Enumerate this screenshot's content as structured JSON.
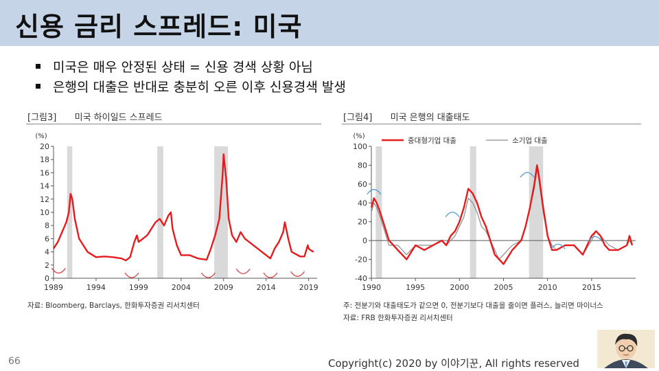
{
  "title": "신용 금리 스프레드: 미국",
  "bullets": [
    "미국은 매우 안정된 상태 = 신용 경색 상황 아님",
    "은행의 대출은 반대로 충분히 오른 이후 신용경색 발생"
  ],
  "figure_left": {
    "label": "[그림3]",
    "title": "미국 하이일드 스프레드",
    "source": "자료: Bloomberg, Barclays, 한화투자증권 리서치센터"
  },
  "figure_right": {
    "label": "[그림4]",
    "title": "미국 은행의 대출태도",
    "note": "주: 전분기와 대출태도가 같으면 0, 전분기보다 대출을 줄이면 플러스, 늘리면 마이너스",
    "source": "자료: FRB 한화투자증권 리서치센터"
  },
  "page_number": "66",
  "copyright": "Copyright(c) 2020 by 이야기꾼, All rights reserved",
  "colors": {
    "title_bar": "#c5d4e6",
    "series_red": "#e8191b",
    "series_gray": "#8c8c8c",
    "recession": "#d9d9d9",
    "annotation_blue": "#4a9ad6",
    "annotation_red": "#d64545"
  },
  "chart_data": [
    {
      "type": "line",
      "unit_label": "(%)",
      "ylim": [
        0,
        20
      ],
      "yticks": [
        "0",
        "2",
        "4",
        "6",
        "8",
        "10",
        "12",
        "14",
        "16",
        "18",
        "20"
      ],
      "xlim": [
        1989,
        2020
      ],
      "xticks": [
        "1989",
        "1994",
        "1999",
        "2004",
        "2009",
        "2014",
        "2019"
      ],
      "grid": false,
      "recessions": [
        [
          1990.6,
          1991.2
        ],
        [
          2001.2,
          2001.9
        ],
        [
          2007.9,
          2009.5
        ]
      ],
      "series": [
        {
          "color": "#e8191b",
          "x": [
            1989,
            1989.5,
            1990,
            1990.5,
            1990.8,
            1991,
            1991.2,
            1991.5,
            1992,
            1993,
            1994,
            1995,
            1996,
            1997,
            1997.5,
            1998,
            1998.5,
            1998.8,
            1999,
            1999.5,
            2000,
            2000.5,
            2001,
            2001.5,
            2002,
            2002.5,
            2002.8,
            2003,
            2003.5,
            2004,
            2005,
            2006,
            2007,
            2007.5,
            2008,
            2008.5,
            2008.9,
            2009,
            2009.3,
            2009.6,
            2010,
            2010.5,
            2011,
            2011.5,
            2012,
            2013,
            2014,
            2014.5,
            2015,
            2015.5,
            2016,
            2016.2,
            2016.6,
            2017,
            2018,
            2018.5,
            2018.9,
            2019,
            2019.3,
            2019.6
          ],
          "y": [
            4.5,
            5.5,
            7,
            8.5,
            10,
            12.8,
            12,
            9,
            6,
            4,
            3.2,
            3.3,
            3.2,
            3,
            2.7,
            3.2,
            5.5,
            6.5,
            5.5,
            6,
            6.5,
            7.5,
            8.5,
            9,
            8,
            9.5,
            10,
            7.5,
            5,
            3.5,
            3.5,
            3,
            2.8,
            4.5,
            6.5,
            9,
            16,
            18.8,
            15,
            9,
            6.5,
            5.5,
            7,
            6,
            5.5,
            4.5,
            3.5,
            3,
            4.5,
            5.5,
            7,
            8.5,
            6,
            4,
            3.3,
            3.3,
            5,
            4.5,
            4.2,
            4
          ]
        }
      ],
      "annotations": [
        "arc-1989",
        "arc-1997",
        "arc-2007",
        "arc-2011",
        "arc-2014",
        "arc-2018"
      ]
    },
    {
      "type": "line",
      "unit_label": "(%)",
      "ylim": [
        -40,
        100
      ],
      "yticks": [
        "-40",
        "-20",
        "0",
        "20",
        "40",
        "60",
        "80",
        "100"
      ],
      "xlim": [
        1990,
        2020
      ],
      "xticks": [
        "1990",
        "1995",
        "2000",
        "2005",
        "2010",
        "2015"
      ],
      "grid": false,
      "recessions": [
        [
          1990.5,
          1991.2
        ],
        [
          2001.2,
          2001.9
        ],
        [
          2007.9,
          2009.5
        ]
      ],
      "legend_position": "top",
      "series": [
        {
          "name": "중대형기업 대출",
          "color": "#e8191b",
          "x": [
            1990,
            1990.3,
            1990.6,
            1991,
            1991.5,
            1992,
            1993,
            1994,
            1995,
            1996,
            1997,
            1998,
            1998.5,
            1999,
            1999.5,
            2000,
            2000.5,
            2001,
            2001.5,
            2002,
            2002.5,
            2003,
            2003.5,
            2004,
            2004.5,
            2005,
            2006,
            2007,
            2007.5,
            2008,
            2008.5,
            2008.8,
            2009,
            2009.5,
            2010,
            2010.5,
            2011,
            2012,
            2013,
            2014,
            2015,
            2015.5,
            2016,
            2016.5,
            2017,
            2018,
            2019,
            2019.3,
            2019.6
          ],
          "y": [
            35,
            45,
            40,
            30,
            15,
            0,
            -10,
            -20,
            -5,
            -10,
            -5,
            0,
            -5,
            5,
            10,
            20,
            35,
            55,
            50,
            40,
            25,
            15,
            0,
            -15,
            -20,
            -25,
            -10,
            0,
            15,
            35,
            60,
            80,
            70,
            35,
            5,
            -10,
            -10,
            -5,
            -5,
            -15,
            5,
            10,
            5,
            -5,
            -10,
            -10,
            -5,
            5,
            -5
          ]
        },
        {
          "name": "소기업 대출",
          "color": "#8c8c8c",
          "x": [
            1990,
            1990.3,
            1990.6,
            1991,
            1991.5,
            1992,
            1993,
            1994,
            1995,
            1996,
            1997,
            1998,
            1998.5,
            1999,
            1999.5,
            2000,
            2000.5,
            2001,
            2001.5,
            2002,
            2002.5,
            2003,
            2003.5,
            2004,
            2004.5,
            2005,
            2006,
            2007,
            2007.5,
            2008,
            2008.5,
            2008.8,
            2009,
            2009.5,
            2010,
            2010.5,
            2011,
            2012,
            2013,
            2014,
            2015,
            2015.5,
            2016,
            2016.5,
            2017,
            2018,
            2019,
            2019.3,
            2019.6
          ],
          "y": [
            30,
            40,
            35,
            25,
            10,
            -5,
            -5,
            -15,
            -5,
            -5,
            -5,
            0,
            -5,
            0,
            5,
            15,
            25,
            45,
            40,
            30,
            15,
            10,
            0,
            -10,
            -20,
            -15,
            -5,
            0,
            15,
            35,
            55,
            75,
            65,
            30,
            5,
            -5,
            -10,
            -5,
            -5,
            -15,
            0,
            10,
            5,
            0,
            -5,
            -10,
            -5,
            0,
            -5
          ]
        }
      ],
      "annotations": [
        "arc-1990",
        "arc-1999",
        "arc-2007",
        "arc-2011",
        "arc-2016"
      ]
    }
  ]
}
